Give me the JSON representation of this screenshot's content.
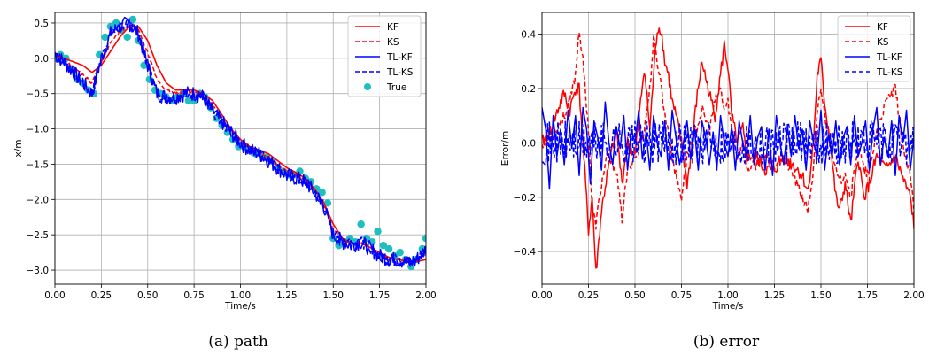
{
  "chart_data": [
    {
      "type": "line",
      "caption": "(a) path",
      "xlabel": "Time/s",
      "ylabel": "x/m",
      "xlim": [
        0,
        2
      ],
      "ylim": [
        -3.2,
        0.65
      ],
      "xticks": [
        "0.00",
        "0.25",
        "0.50",
        "0.75",
        "1.00",
        "1.25",
        "1.50",
        "1.75",
        "2.00"
      ],
      "yticks": [
        "0.5",
        "0.0",
        "−0.5",
        "−1.0",
        "−1.5",
        "−2.0",
        "−2.5",
        "−3.0"
      ],
      "ytick_values": [
        0.5,
        0,
        -0.5,
        -1.0,
        -1.5,
        -2.0,
        -2.5,
        -3.0
      ],
      "grid": true,
      "legend_position": "top-right",
      "legend": [
        {
          "name": "KF",
          "style": "solid",
          "color": "#ff0000"
        },
        {
          "name": "KS",
          "style": "dashed",
          "color": "#ff0000"
        },
        {
          "name": "TL-KF",
          "style": "solid",
          "color": "#0000ff"
        },
        {
          "name": "TL-KS",
          "style": "dashed",
          "color": "#0000ff"
        },
        {
          "name": "True",
          "style": "marker",
          "color": "#1fbfbf"
        }
      ],
      "base": {
        "x": [
          0,
          0.05,
          0.1,
          0.15,
          0.2,
          0.25,
          0.3,
          0.35,
          0.4,
          0.45,
          0.5,
          0.55,
          0.6,
          0.65,
          0.7,
          0.75,
          0.8,
          0.85,
          0.9,
          0.95,
          1.0,
          1.05,
          1.1,
          1.15,
          1.2,
          1.25,
          1.3,
          1.35,
          1.4,
          1.45,
          1.5,
          1.55,
          1.6,
          1.65,
          1.7,
          1.75,
          1.8,
          1.85,
          1.9,
          1.95,
          2.0
        ],
        "y": [
          0.05,
          -0.05,
          -0.2,
          -0.35,
          -0.5,
          0.0,
          0.35,
          0.45,
          0.5,
          0.35,
          -0.1,
          -0.5,
          -0.55,
          -0.55,
          -0.5,
          -0.5,
          -0.55,
          -0.75,
          -0.9,
          -1.05,
          -1.2,
          -1.3,
          -1.35,
          -1.45,
          -1.55,
          -1.65,
          -1.7,
          -1.75,
          -1.9,
          -2.1,
          -2.5,
          -2.6,
          -2.65,
          -2.6,
          -2.7,
          -2.8,
          -2.85,
          -2.85,
          -2.9,
          -2.85,
          -2.7
        ]
      },
      "KF": {
        "x": [
          0,
          0.05,
          0.1,
          0.15,
          0.2,
          0.25,
          0.3,
          0.35,
          0.4,
          0.45,
          0.5,
          0.55,
          0.6,
          0.65,
          0.7,
          0.75,
          0.8,
          0.85,
          0.9,
          0.95,
          1.0,
          1.05,
          1.1,
          1.15,
          1.2,
          1.25,
          1.3,
          1.35,
          1.4,
          1.45,
          1.5,
          1.55,
          1.6,
          1.65,
          1.7,
          1.75,
          1.8,
          1.85,
          1.9,
          1.95,
          2.0
        ],
        "y": [
          0.05,
          0.0,
          -0.05,
          -0.1,
          -0.2,
          -0.1,
          0.1,
          0.3,
          0.45,
          0.45,
          0.25,
          -0.1,
          -0.35,
          -0.45,
          -0.45,
          -0.45,
          -0.5,
          -0.6,
          -0.8,
          -1.0,
          -1.15,
          -1.25,
          -1.3,
          -1.35,
          -1.45,
          -1.55,
          -1.62,
          -1.7,
          -1.85,
          -2.05,
          -2.35,
          -2.55,
          -2.62,
          -2.62,
          -2.68,
          -2.75,
          -2.82,
          -2.85,
          -2.88,
          -2.88,
          -2.85
        ]
      },
      "true_points": {
        "x": [
          0.0,
          0.03,
          0.06,
          0.09,
          0.12,
          0.15,
          0.18,
          0.21,
          0.24,
          0.27,
          0.3,
          0.33,
          0.36,
          0.39,
          0.42,
          0.45,
          0.48,
          0.51,
          0.54,
          0.57,
          0.6,
          0.63,
          0.66,
          0.69,
          0.72,
          0.75,
          0.78,
          0.81,
          0.84,
          0.87,
          0.9,
          0.93,
          0.96,
          0.99,
          1.02,
          1.05,
          1.08,
          1.11,
          1.14,
          1.17,
          1.2,
          1.23,
          1.26,
          1.29,
          1.32,
          1.35,
          1.38,
          1.41,
          1.44,
          1.47,
          1.5,
          1.53,
          1.56,
          1.59,
          1.62,
          1.65,
          1.68,
          1.71,
          1.74,
          1.77,
          1.8,
          1.83,
          1.86,
          1.89,
          1.92,
          1.95,
          1.98,
          2.0
        ],
        "y": [
          0.0,
          0.05,
          0.0,
          -0.15,
          -0.3,
          -0.35,
          -0.45,
          -0.5,
          0.05,
          0.3,
          0.45,
          0.5,
          0.4,
          0.3,
          0.55,
          0.25,
          -0.1,
          -0.3,
          -0.45,
          -0.5,
          -0.55,
          -0.6,
          -0.55,
          -0.5,
          -0.6,
          -0.6,
          -0.5,
          -0.55,
          -0.7,
          -0.85,
          -0.95,
          -1.05,
          -1.15,
          -1.25,
          -1.25,
          -1.3,
          -1.35,
          -1.35,
          -1.4,
          -1.45,
          -1.55,
          -1.6,
          -1.65,
          -1.65,
          -1.6,
          -1.7,
          -1.75,
          -1.85,
          -1.9,
          -2.05,
          -2.55,
          -2.65,
          -2.6,
          -2.55,
          -2.6,
          -2.35,
          -2.55,
          -2.6,
          -2.45,
          -2.65,
          -2.7,
          -2.8,
          -2.75,
          -2.85,
          -2.95,
          -2.85,
          -2.7,
          -2.55
        ]
      }
    },
    {
      "type": "line",
      "caption": "(b) error",
      "xlabel": "Time/s",
      "ylabel": "Error/m",
      "xlim": [
        0,
        2
      ],
      "ylim": [
        -0.52,
        0.48
      ],
      "xticks": [
        "0.00",
        "0.25",
        "0.50",
        "0.75",
        "1.00",
        "1.25",
        "1.50",
        "1.75",
        "2.00"
      ],
      "yticks": [
        "0.4",
        "0.2",
        "0.0",
        "−0.2",
        "−0.4"
      ],
      "ytick_values": [
        0.4,
        0.2,
        0.0,
        -0.2,
        -0.4
      ],
      "grid": true,
      "legend_position": "top-right",
      "legend": [
        {
          "name": "KF",
          "style": "solid",
          "color": "#ff0000"
        },
        {
          "name": "KS",
          "style": "dashed",
          "color": "#ff0000"
        },
        {
          "name": "TL-KF",
          "style": "solid",
          "color": "#0000ff"
        },
        {
          "name": "TL-KS",
          "style": "dashed",
          "color": "#0000ff"
        }
      ],
      "KF": {
        "x": [
          0,
          0.05,
          0.1,
          0.12,
          0.15,
          0.18,
          0.2,
          0.22,
          0.25,
          0.27,
          0.29,
          0.32,
          0.35,
          0.4,
          0.43,
          0.46,
          0.5,
          0.55,
          0.58,
          0.6,
          0.62,
          0.64,
          0.66,
          0.68,
          0.7,
          0.72,
          0.75,
          0.78,
          0.8,
          0.83,
          0.86,
          0.9,
          0.93,
          0.96,
          0.98,
          1.0,
          1.02,
          1.05,
          1.08,
          1.1,
          1.15,
          1.2,
          1.25,
          1.3,
          1.35,
          1.4,
          1.43,
          1.46,
          1.48,
          1.5,
          1.52,
          1.55,
          1.58,
          1.6,
          1.63,
          1.66,
          1.7,
          1.73,
          1.76,
          1.8,
          1.85,
          1.9,
          1.95,
          1.98,
          2.0
        ],
        "y": [
          0.0,
          0.05,
          0.15,
          0.18,
          0.12,
          0.2,
          0.2,
          0.0,
          -0.32,
          -0.2,
          -0.48,
          -0.25,
          -0.12,
          0.05,
          -0.15,
          0.0,
          -0.05,
          0.28,
          0.05,
          0.25,
          0.42,
          0.42,
          0.3,
          0.25,
          0.15,
          0.1,
          0.0,
          -0.15,
          -0.05,
          0.15,
          0.3,
          0.18,
          0.1,
          0.25,
          0.36,
          0.28,
          0.1,
          0.0,
          0.05,
          -0.05,
          -0.05,
          -0.1,
          -0.1,
          -0.05,
          -0.08,
          -0.12,
          -0.18,
          0.0,
          0.25,
          0.3,
          0.15,
          0.0,
          -0.2,
          -0.25,
          -0.15,
          -0.3,
          -0.05,
          -0.2,
          -0.15,
          -0.05,
          -0.1,
          -0.05,
          -0.15,
          -0.2,
          -0.3
        ]
      },
      "KS": {
        "x": [
          0,
          0.05,
          0.1,
          0.12,
          0.15,
          0.18,
          0.2,
          0.22,
          0.25,
          0.27,
          0.29,
          0.32,
          0.35,
          0.4,
          0.43,
          0.46,
          0.5,
          0.55,
          0.58,
          0.6,
          0.62,
          0.64,
          0.66,
          0.68,
          0.7,
          0.72,
          0.75,
          0.78,
          0.8,
          0.83,
          0.86,
          0.9,
          0.93,
          0.96,
          0.98,
          1.0,
          1.02,
          1.05,
          1.08,
          1.1,
          1.15,
          1.2,
          1.25,
          1.3,
          1.35,
          1.4,
          1.43,
          1.46,
          1.48,
          1.5,
          1.52,
          1.55,
          1.58,
          1.6,
          1.63,
          1.66,
          1.7,
          1.73,
          1.76,
          1.8,
          1.85,
          1.9,
          1.95,
          1.98,
          2.0
        ],
        "y": [
          0.0,
          0.02,
          0.08,
          0.1,
          0.15,
          0.25,
          0.42,
          0.3,
          0.05,
          -0.25,
          -0.3,
          -0.15,
          -0.05,
          -0.1,
          -0.28,
          -0.1,
          -0.05,
          0.05,
          0.2,
          0.38,
          0.3,
          0.22,
          0.1,
          0.05,
          -0.05,
          -0.12,
          -0.2,
          -0.05,
          0.0,
          0.05,
          0.12,
          0.05,
          0.15,
          0.2,
          0.12,
          0.15,
          0.05,
          -0.05,
          0.0,
          -0.1,
          -0.08,
          -0.05,
          -0.08,
          -0.05,
          -0.12,
          -0.2,
          -0.25,
          -0.1,
          0.1,
          0.2,
          0.1,
          0.02,
          -0.1,
          -0.15,
          -0.1,
          -0.2,
          0.0,
          -0.1,
          -0.12,
          0.05,
          0.15,
          0.2,
          -0.05,
          -0.12,
          -0.25
        ]
      },
      "TLKF": {
        "x": [
          0,
          0.02,
          0.04,
          0.06,
          0.08,
          0.1,
          0.12,
          0.14,
          0.16,
          0.18,
          0.2,
          0.22,
          0.24,
          0.26,
          0.28,
          0.3,
          0.32,
          0.34,
          0.36,
          0.38,
          0.4,
          0.42,
          0.44,
          0.46,
          0.48,
          0.5,
          0.52,
          0.54,
          0.56,
          0.58,
          0.6,
          0.62,
          0.64,
          0.66,
          0.68,
          0.7,
          0.72,
          0.74,
          0.76,
          0.78,
          0.8,
          0.82,
          0.84,
          0.86,
          0.88,
          0.9,
          0.92,
          0.94,
          0.96,
          0.98,
          1.0,
          1.02,
          1.04,
          1.06,
          1.08,
          1.1,
          1.12,
          1.14,
          1.16,
          1.18,
          1.2,
          1.22,
          1.24,
          1.26,
          1.28,
          1.3,
          1.32,
          1.34,
          1.36,
          1.38,
          1.4,
          1.42,
          1.44,
          1.46,
          1.48,
          1.5,
          1.52,
          1.54,
          1.56,
          1.58,
          1.6,
          1.62,
          1.64,
          1.66,
          1.68,
          1.7,
          1.72,
          1.74,
          1.76,
          1.78,
          1.8,
          1.82,
          1.84,
          1.86,
          1.88,
          1.9,
          1.92,
          1.94,
          1.96,
          1.98,
          2.0
        ],
        "y": [
          0.13,
          0.05,
          -0.17,
          0.1,
          -0.05,
          0.05,
          -0.08,
          0.12,
          -0.02,
          0.1,
          -0.12,
          0.13,
          0.05,
          -0.15,
          0.08,
          0.02,
          -0.1,
          0.15,
          0.0,
          -0.08,
          0.06,
          -0.02,
          0.1,
          -0.1,
          0.05,
          0.0,
          0.12,
          -0.06,
          0.04,
          -0.1,
          0.1,
          0.0,
          -0.05,
          0.08,
          -0.1,
          0.12,
          0.02,
          -0.08,
          0.0,
          0.08,
          -0.06,
          0.05,
          -0.1,
          0.08,
          0.02,
          -0.08,
          0.04,
          -0.1,
          0.1,
          0.0,
          -0.05,
          0.06,
          -0.1,
          0.08,
          0.0,
          -0.05,
          0.1,
          -0.08,
          0.02,
          0.06,
          -0.1,
          0.05,
          -0.12,
          0.1,
          0.0,
          -0.08,
          0.06,
          -0.05,
          0.1,
          -0.02,
          0.05,
          -0.1,
          0.08,
          0.0,
          -0.05,
          0.12,
          -0.1,
          0.03,
          -0.05,
          0.08,
          -0.08,
          0.02,
          0.06,
          -0.08,
          0.1,
          -0.05,
          0.0,
          0.08,
          -0.1,
          0.05,
          0.13,
          -0.08,
          0.02,
          -0.05,
          0.08,
          -0.12,
          0.1,
          0.0,
          0.12,
          -0.1,
          0.02
        ]
      }
    }
  ]
}
